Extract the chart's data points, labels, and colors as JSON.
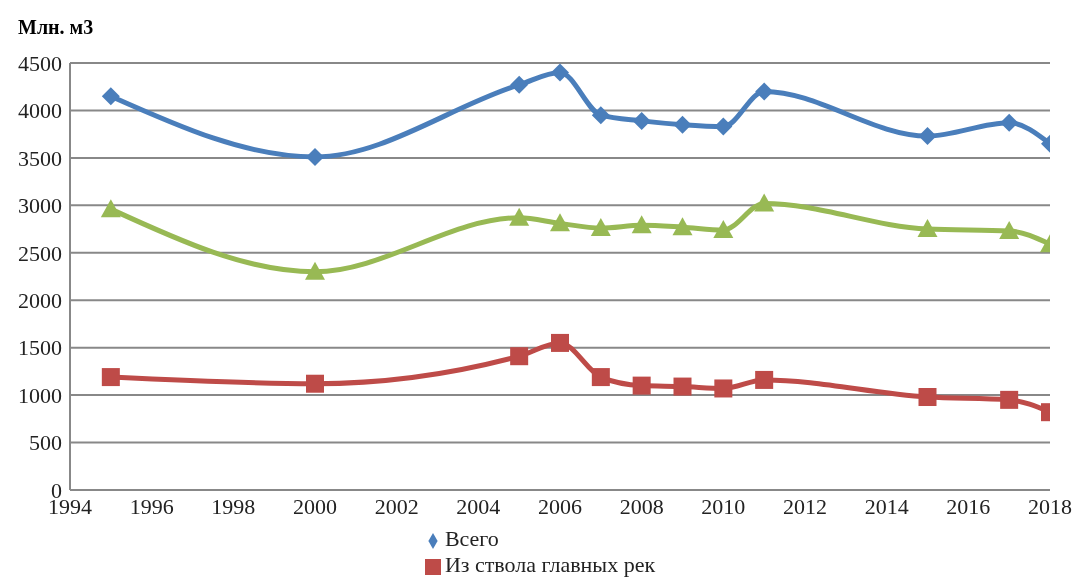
{
  "chart_data": {
    "type": "line",
    "ylabel": "Млн. м3",
    "x": [
      1995,
      2000,
      2005,
      2006,
      2007,
      2008,
      2009,
      2010,
      2011,
      2015,
      2017,
      2018
    ],
    "series": [
      {
        "name": "Всего",
        "color": "#4a7ebb",
        "marker": "diamond",
        "values": [
          4150,
          3510,
          4270,
          4400,
          3950,
          3890,
          3850,
          3830,
          4200,
          3730,
          3870,
          3650
        ]
      },
      {
        "color": "#98b954",
        "marker": "triangle",
        "values": [
          2960,
          2300,
          2870,
          2810,
          2760,
          2790,
          2770,
          2740,
          3020,
          2750,
          2730,
          2590
        ]
      },
      {
        "name": "Из ствола главных рек",
        "color": "#be4b48",
        "marker": "square",
        "values": [
          1190,
          1120,
          1410,
          1550,
          1190,
          1100,
          1090,
          1070,
          1160,
          980,
          950,
          820
        ]
      }
    ],
    "xlim": [
      1994,
      2018
    ],
    "xticks": [
      1994,
      1996,
      1998,
      2000,
      2002,
      2004,
      2006,
      2008,
      2010,
      2012,
      2014,
      2016,
      2018
    ],
    "ylim": [
      0,
      4500
    ],
    "yticks": [
      0,
      500,
      1000,
      1500,
      2000,
      2500,
      3000,
      3500,
      4000,
      4500
    ],
    "grid": "y",
    "legend": "bottom",
    "line_style": "solid"
  }
}
